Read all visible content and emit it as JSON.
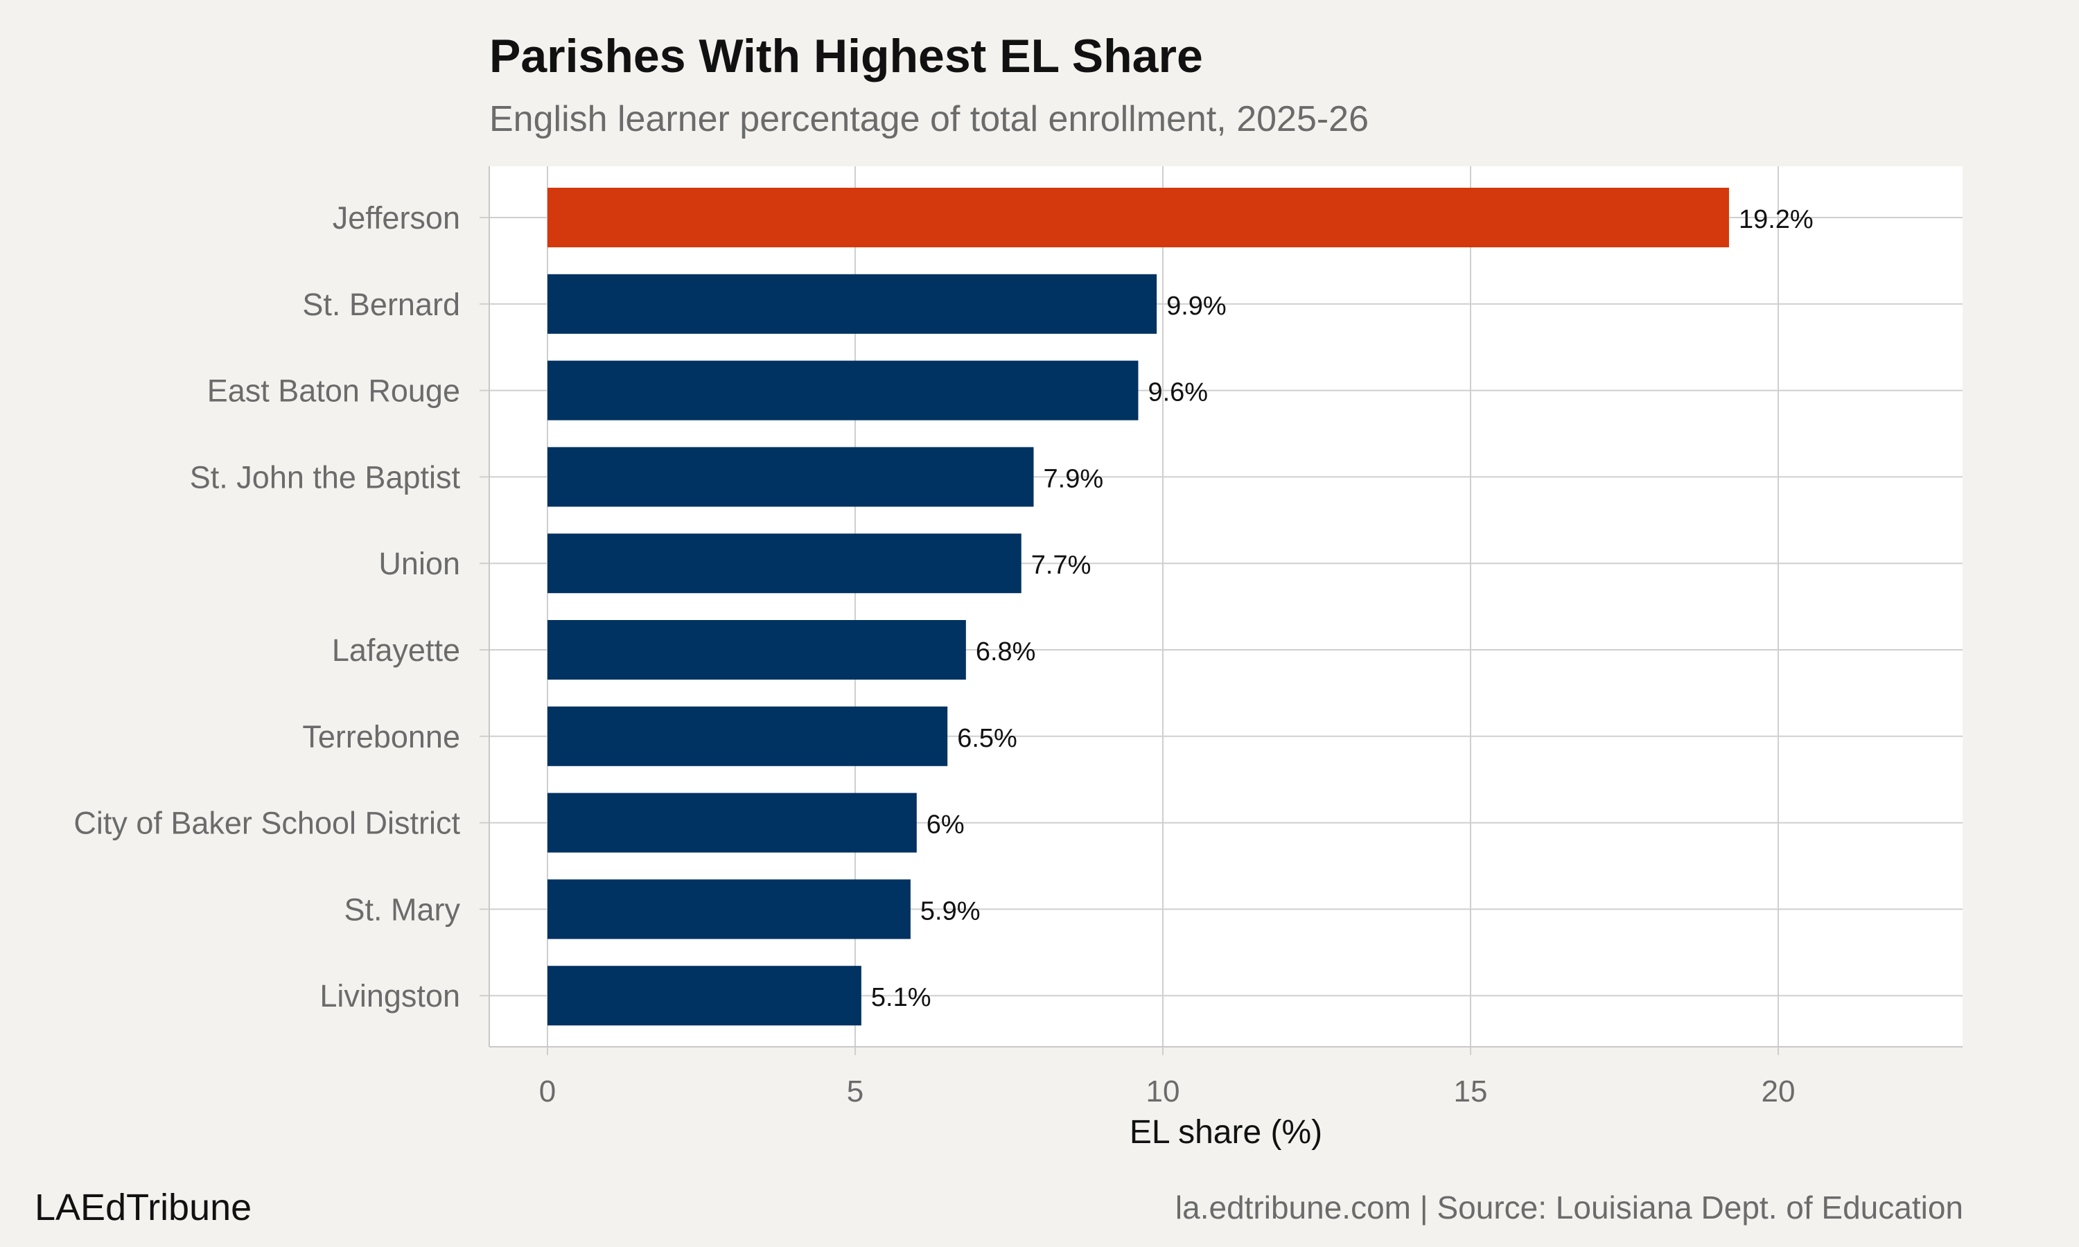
{
  "title": "Parishes With Highest EL Share",
  "subtitle": "English learner percentage of total enrollment, 2025-26",
  "footer": {
    "brand": "LAEdTribune",
    "source": "la.edtribune.com | Source: Louisiana Dept. of Education"
  },
  "colors": {
    "highlight": "#d4380d",
    "bar": "#003262",
    "background": "#f4f2ee",
    "panel": "#ffffff",
    "grid": "#cfcfcf"
  },
  "chart_data": {
    "type": "bar",
    "orientation": "horizontal",
    "categories": [
      "Jefferson",
      "St. Bernard",
      "East Baton Rouge",
      "St. John the Baptist",
      "Union",
      "Lafayette",
      "Terrebonne",
      "City of Baker School District",
      "St. Mary",
      "Livingston"
    ],
    "values": [
      19.2,
      9.9,
      9.6,
      7.9,
      7.7,
      6.8,
      6.5,
      6.0,
      5.9,
      5.1
    ],
    "data_labels": [
      "19.2%",
      "9.9%",
      "9.6%",
      "7.9%",
      "7.7%",
      "6.8%",
      "6.5%",
      "6%",
      "5.9%",
      "5.1%"
    ],
    "highlighted_category": "Jefferson",
    "xlabel": "EL share (%)",
    "ylabel": "",
    "xlim": [
      0,
      23
    ],
    "xticks": [
      0,
      5,
      10,
      15,
      20
    ],
    "xtick_labels": [
      "0",
      "5",
      "10",
      "15",
      "20"
    ],
    "grid": true,
    "legend": "none"
  }
}
